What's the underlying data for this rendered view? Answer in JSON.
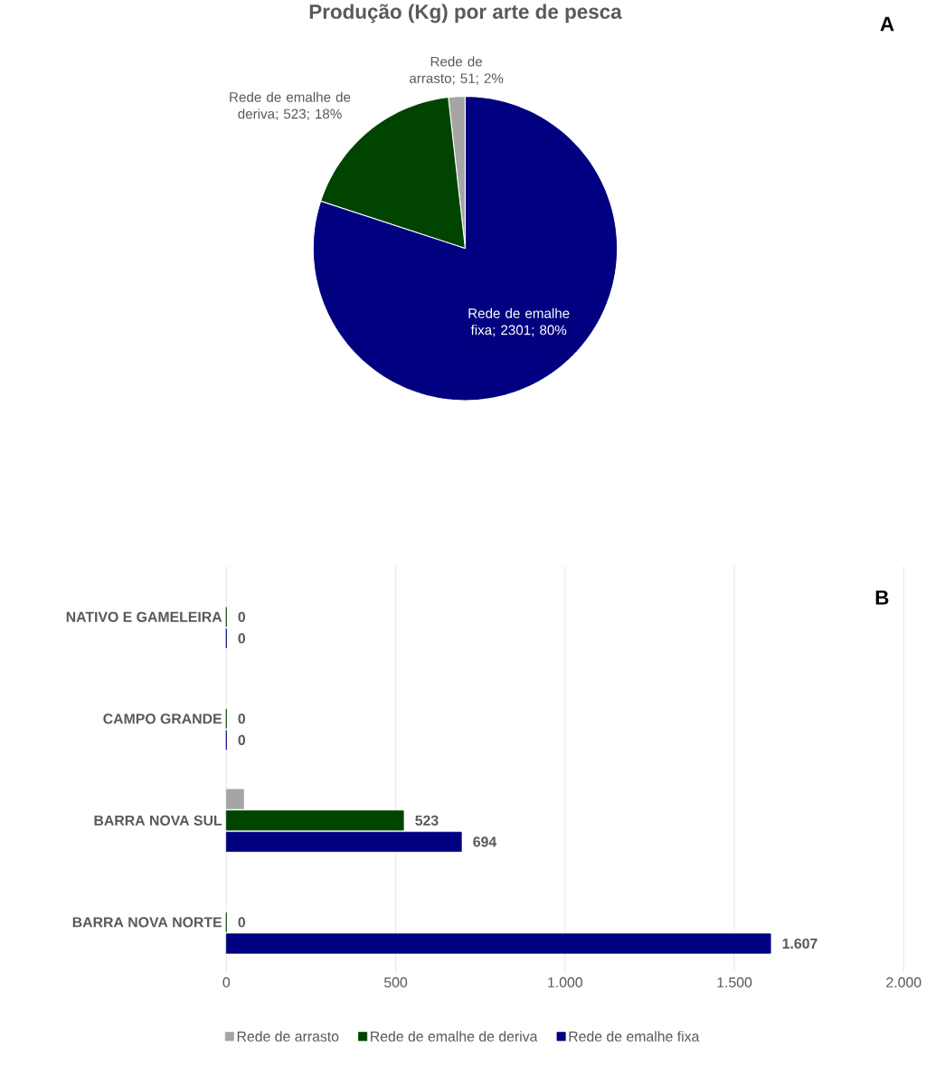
{
  "chart_data": [
    {
      "type": "pie",
      "title": "Produção (Kg) por arte de pesca",
      "categories": [
        "Rede de arrasto",
        "Rede de emalhe de deriva",
        "Rede de emalhe fixa"
      ],
      "values": [
        51,
        523,
        2301
      ],
      "value_labels": [
        "; 51; 2%",
        "; 523; 18%",
        "; 2301; 80%"
      ],
      "colors": [
        "#a5a5a5",
        "#004400",
        "#000080"
      ],
      "annotations": [
        "A"
      ]
    },
    {
      "type": "bar",
      "orientation": "horizontal",
      "categories": [
        "NATIVO E GAMELEIRA",
        "CAMPO GRANDE",
        "BARRA NOVA SUL",
        "BARRA NOVA NORTE"
      ],
      "series": [
        {
          "name": "Rede de arrasto",
          "color": "#a5a5a5",
          "values": [
            null,
            null,
            51,
            null
          ]
        },
        {
          "name": "Rede de emalhe de deriva",
          "color": "#004400",
          "values": [
            0,
            0,
            523,
            0
          ],
          "value_labels": [
            "0",
            "0",
            "523",
            "0"
          ]
        },
        {
          "name": "Rede de emalhe fixa",
          "color": "#000080",
          "values": [
            0,
            0,
            694,
            1607
          ],
          "value_labels": [
            "0",
            "0",
            "694",
            "1.607"
          ]
        }
      ],
      "xlim": [
        0,
        2000
      ],
      "xticks": [
        0,
        500,
        {
          "value": 1000,
          "label": "1.000"
        },
        {
          "value": 1500,
          "label": "1.500"
        },
        {
          "value": 2000,
          "label": "2.000"
        }
      ],
      "grid": "x",
      "legend": "bottom",
      "annotations": [
        "B"
      ]
    }
  ]
}
